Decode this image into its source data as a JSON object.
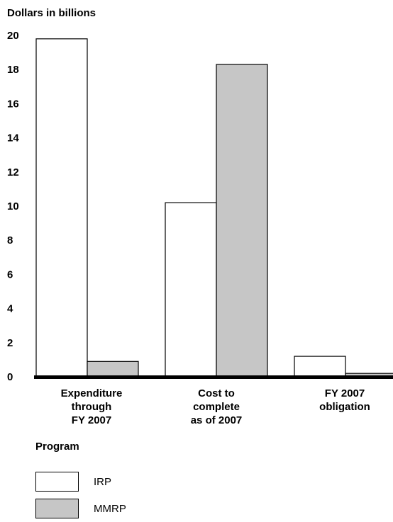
{
  "chart_data": {
    "type": "bar",
    "ylabel": "Dollars in billions",
    "ylim": [
      0,
      20
    ],
    "yticks": [
      0,
      2,
      4,
      6,
      8,
      10,
      12,
      14,
      16,
      18,
      20
    ],
    "categories": [
      "Expenditure\nthrough\nFY 2007",
      "Cost to\ncomplete\nas of 2007",
      "FY 2007\nobligation"
    ],
    "legend_title": "Program",
    "legend_position": "bottom-left",
    "grid": false,
    "series": [
      {
        "name": "IRP",
        "color": "#ffffff",
        "values": [
          19.8,
          10.2,
          1.2
        ]
      },
      {
        "name": "MMRP",
        "color": "#c6c6c6",
        "values": [
          0.9,
          18.3,
          0.2
        ]
      }
    ]
  }
}
